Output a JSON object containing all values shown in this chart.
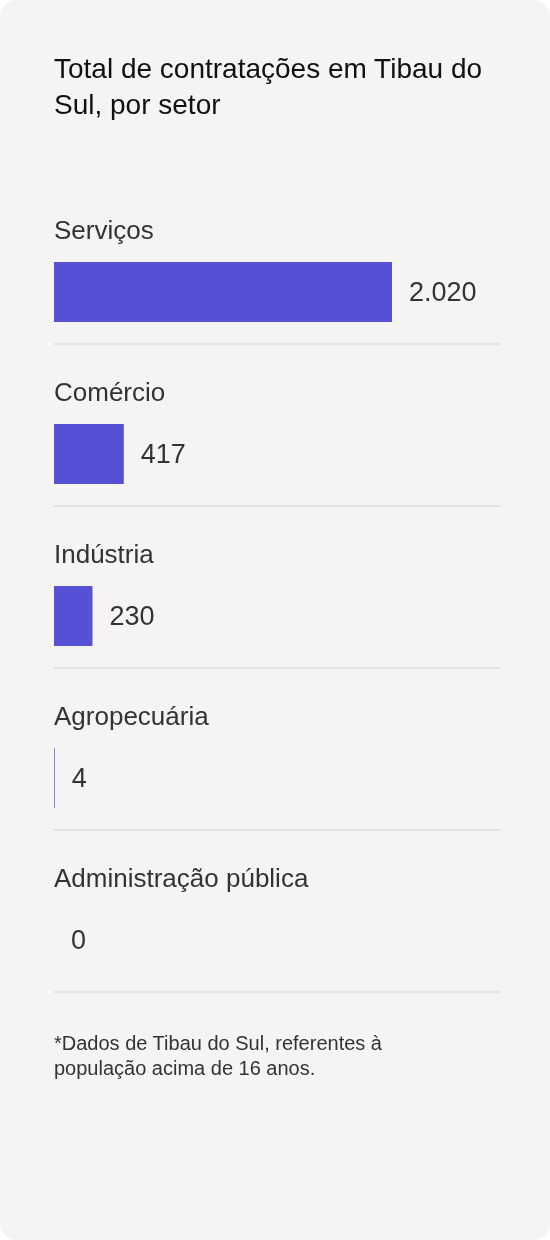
{
  "chart_data": {
    "type": "bar",
    "orientation": "horizontal",
    "title": "Total de contratações em Tibau do Sul, por setor",
    "categories": [
      "Serviços",
      "Comércio",
      "Indústria",
      "Agropecuária",
      "Administração pública"
    ],
    "values": [
      2020,
      417,
      230,
      4,
      0
    ],
    "value_labels": [
      "2.020",
      "417",
      "230",
      "4",
      "0"
    ],
    "color": "#5650d4",
    "annotations": [
      "*Dados de Tibau do Sul, referentes à população acima de 16 anos."
    ]
  }
}
